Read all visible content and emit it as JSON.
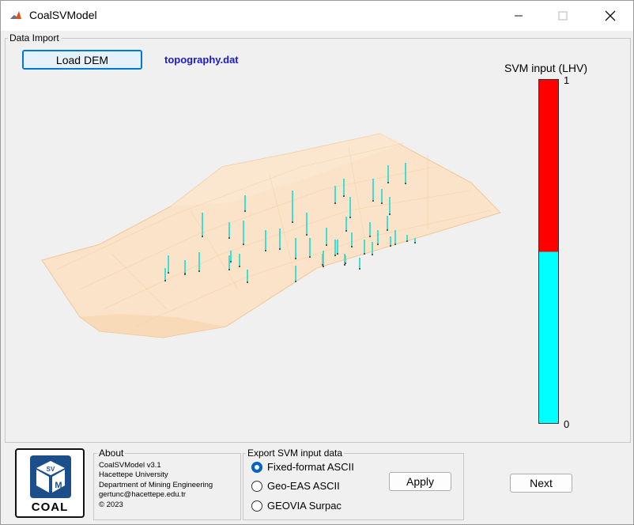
{
  "window": {
    "title": "CoalSVModel"
  },
  "titlebar_buttons": [
    "minimize",
    "maximize",
    "close"
  ],
  "data_import": {
    "panel_title": "Data Import",
    "load_button": "Load DEM",
    "file_name": "topography.dat"
  },
  "colorbar": {
    "title": "SVM input (LHV)",
    "tick_top": "1",
    "tick_bottom": "0",
    "colors": {
      "high": "#ff0000",
      "low": "#00ffff"
    },
    "split_fraction": 0.5
  },
  "about": {
    "panel_title": "About",
    "lines": [
      "CoalSVModel v3.1",
      "Hacettepe University",
      "Department of Mining Engineering",
      "gertunc@hacettepe.edu.tr",
      "© 2023"
    ]
  },
  "logo": {
    "text": "COAL",
    "cube_letters": [
      "SV",
      "M"
    ]
  },
  "export": {
    "panel_title": "Export SVM input data",
    "options": [
      "Fixed-format ASCII",
      "Geo-EAS ASCII",
      "GEOVIA Surpac"
    ],
    "selected": 0,
    "apply_button": "Apply"
  },
  "next_button": "Next",
  "colors": {
    "surface": "#f8d6b0",
    "borehole": "#40e0d0",
    "accent": "#0078d7"
  }
}
